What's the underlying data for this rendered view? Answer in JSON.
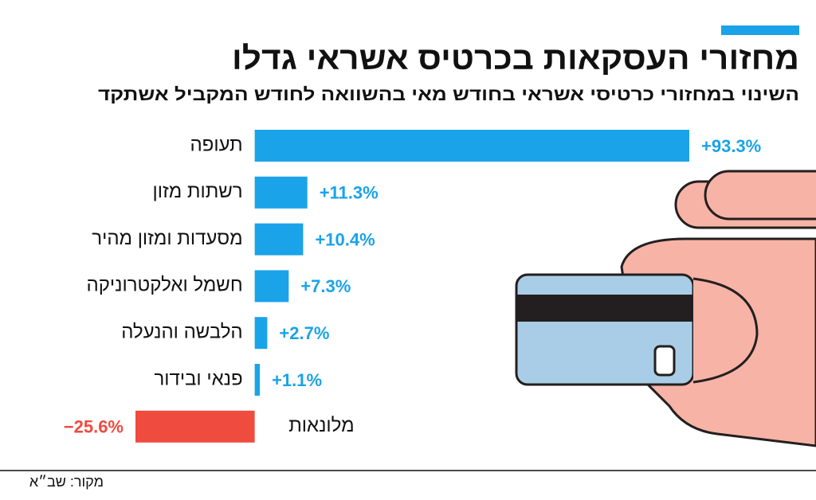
{
  "chart_data": {
    "type": "hbar",
    "title": "מחזורי העסקאות בכרטיס אשראי גדלו",
    "subtitle": "השינוי במחזורי כרטיסי אשראי בחודש מאי בהשוואה לחודש המקביל אשתקד",
    "categories": [
      "תעופה",
      "רשתות מזון",
      "מסעדות ומזון מהיר",
      "חשמל ואלקטרוניקה",
      "הלבשה והנעלה",
      "פנאי ובידור",
      "מלונאות"
    ],
    "values": [
      93.3,
      11.3,
      10.4,
      7.3,
      2.7,
      1.1,
      -25.6
    ],
    "value_labels": [
      "+93.3%",
      "+11.3%",
      "+10.4%",
      "+7.3%",
      "+2.7%",
      "+1.1%",
      "−25.6%"
    ],
    "positive_color": "#1aa3e8",
    "negative_color": "#ef4b3f",
    "source": "מקור: שב״א"
  }
}
